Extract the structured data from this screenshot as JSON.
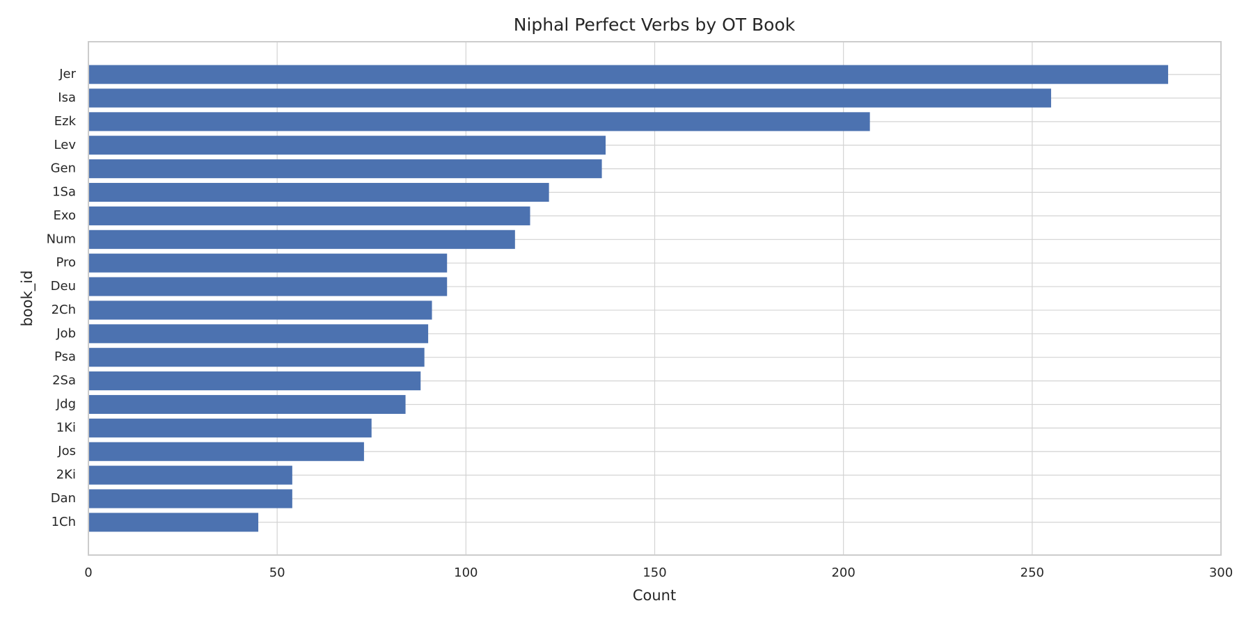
{
  "chart_data": {
    "type": "barh",
    "title": "Niphal Perfect Verbs by OT Book",
    "x_label": "Count",
    "y_label": "book_id",
    "categories": [
      "Jer",
      "Isa",
      "Ezk",
      "Lev",
      "Gen",
      "1Sa",
      "Exo",
      "Num",
      "Pro",
      "Deu",
      "2Ch",
      "Job",
      "Psa",
      "2Sa",
      "Jdg",
      "1Ki",
      "Jos",
      "2Ki",
      "Dan",
      "1Ch"
    ],
    "values": [
      286,
      255,
      207,
      137,
      136,
      122,
      117,
      113,
      95,
      95,
      91,
      90,
      89,
      88,
      84,
      75,
      73,
      54,
      54,
      45
    ],
    "color": "#4c72b0",
    "xlim": [
      0,
      300
    ],
    "xticks": [
      0,
      50,
      100,
      150,
      200,
      250,
      300
    ],
    "grid": true
  }
}
